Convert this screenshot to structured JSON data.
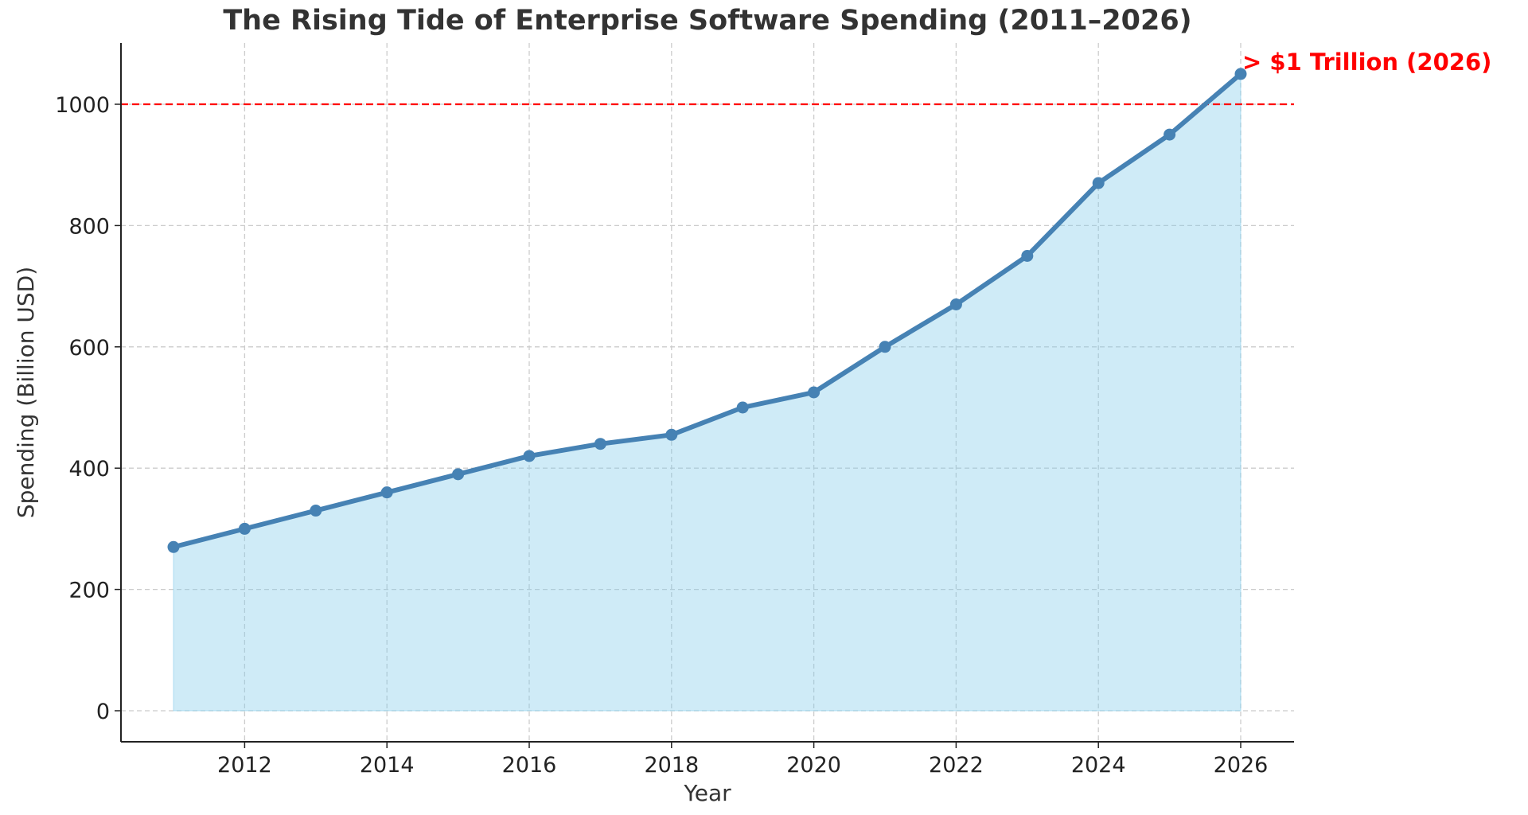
{
  "chart_data": {
    "type": "area",
    "title": "The Rising Tide of Enterprise Software Spending (2011–2026)",
    "xlabel": "Year",
    "ylabel": "Spending (Billion USD)",
    "x": [
      2011,
      2012,
      2013,
      2014,
      2015,
      2016,
      2017,
      2018,
      2019,
      2020,
      2021,
      2022,
      2023,
      2024,
      2025,
      2026
    ],
    "values": [
      270,
      300,
      330,
      360,
      390,
      420,
      440,
      455,
      500,
      525,
      600,
      670,
      750,
      870,
      950,
      1050
    ],
    "xlim": [
      2010.3,
      2026.75
    ],
    "ylim": [
      -50,
      1100
    ],
    "xticks": [
      2012,
      2014,
      2016,
      2018,
      2020,
      2022,
      2024,
      2026
    ],
    "yticks": [
      0,
      200,
      400,
      600,
      800,
      1000
    ],
    "grid": true,
    "threshold": {
      "value": 1000,
      "color": "#ff0000"
    },
    "annotation": {
      "text": "> $1 Trillion (2026)",
      "x": 2026,
      "y": 1050,
      "color": "#ff0000"
    },
    "colors": {
      "line": "#4682b4",
      "fill": "#87ceeb",
      "grid": "#cccccc",
      "title": "#333333"
    }
  }
}
